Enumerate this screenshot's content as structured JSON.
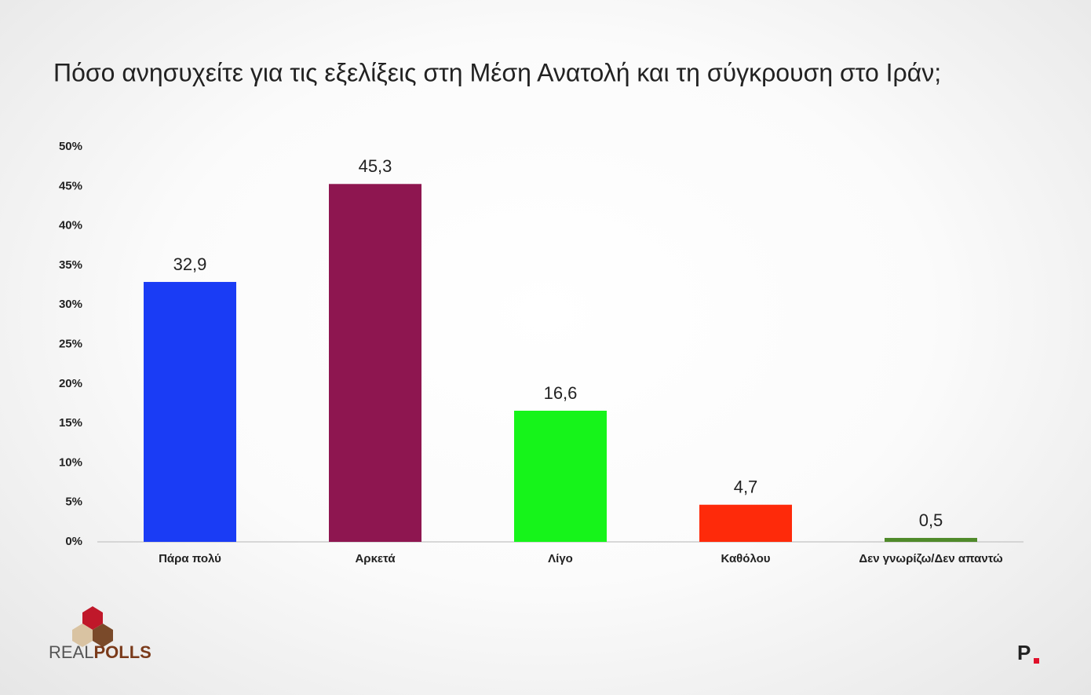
{
  "chart_data": {
    "type": "bar",
    "title": "Πόσο ανησυχείτε για τις εξελίξεις στη Μέση Ανατολή και τη σύγκρουση στο Ιράν;",
    "categories": [
      "Πάρα πολύ",
      "Αρκετά",
      "Λίγο",
      "Καθόλου",
      "Δεν γνωρίζω/Δεν απαντώ"
    ],
    "values": [
      32.9,
      45.3,
      16.6,
      4.7,
      0.5
    ],
    "value_labels": [
      "32,9",
      "45,3",
      "16,6",
      "4,7",
      "0,5"
    ],
    "colors": [
      "#1a3cf5",
      "#8e1650",
      "#16f41a",
      "#fe2a0a",
      "#4f8a2a"
    ],
    "ylim": [
      0,
      50
    ],
    "yticks": [
      {
        "value": 0,
        "label": "0%"
      },
      {
        "value": 5,
        "label": "5%"
      },
      {
        "value": 10,
        "label": "10%"
      },
      {
        "value": 15,
        "label": "15%"
      },
      {
        "value": 20,
        "label": "20%"
      },
      {
        "value": 25,
        "label": "25%"
      },
      {
        "value": 30,
        "label": "30%"
      },
      {
        "value": 35,
        "label": "35%"
      },
      {
        "value": 40,
        "label": "40%"
      },
      {
        "value": 45,
        "label": "45%"
      },
      {
        "value": 50,
        "label": "50%"
      }
    ],
    "grid": false
  },
  "footer": {
    "logo_left": [
      "REAL",
      "POLLS"
    ],
    "logo_right": "P"
  }
}
